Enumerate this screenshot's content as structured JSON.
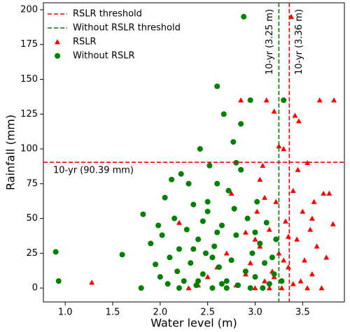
{
  "chart_data": {
    "type": "scatter",
    "xlabel": "Water level (m)",
    "ylabel": "Rainfall (mm)",
    "xlim": [
      0.77,
      3.94
    ],
    "ylim": [
      -10,
      205
    ],
    "xticks": [
      {
        "value": 1.0,
        "label": "1.0"
      },
      {
        "value": 1.5,
        "label": "1.5"
      },
      {
        "value": 2.0,
        "label": "2.0"
      },
      {
        "value": 2.5,
        "label": "2.5"
      },
      {
        "value": 3.0,
        "label": "3.0"
      },
      {
        "value": 3.5,
        "label": "3.5"
      }
    ],
    "yticks": [
      0,
      25,
      50,
      75,
      100,
      125,
      150,
      175,
      200
    ],
    "legend": "upper left",
    "thresholds": [
      {
        "name": "RSLR threshold",
        "color": "#ff0000",
        "axis": "x",
        "value": 3.36,
        "label": "10-yr (3.36 m)"
      },
      {
        "name": "Without RSLR threshold",
        "color": "#008000",
        "axis": "x",
        "value": 3.25,
        "label": "10-yr (3.25 m)"
      },
      {
        "axis": "y",
        "color": "#ff0000",
        "value": 90.39,
        "label": "10-yr (90.39 mm)"
      }
    ],
    "series": [
      {
        "name": "RSLR",
        "color": "#ff0000",
        "marker": "triangle",
        "x": [
          1.28,
          2.4,
          2.5,
          2.6,
          2.7,
          2.75,
          2.8,
          2.85,
          2.9,
          2.95,
          3.0,
          3.02,
          3.05,
          3.08,
          3.1,
          3.12,
          3.15,
          3.18,
          3.2,
          3.22,
          3.25,
          3.28,
          3.3,
          3.32,
          3.35,
          3.38,
          3.4,
          3.42,
          3.44,
          3.46,
          3.48,
          3.5,
          3.52,
          3.55,
          3.58,
          3.6,
          3.62,
          3.65,
          3.68,
          3.7,
          3.72,
          3.75,
          3.78,
          3.82,
          3.83,
          3.4,
          3.3,
          3.2,
          3.1,
          3.0,
          2.9,
          3.45,
          3.55,
          3.6,
          2.2,
          2.3,
          3.25,
          3.35,
          3.15,
          3.05
        ],
        "y": [
          4,
          2,
          8,
          15,
          25,
          68,
          2,
          135,
          40,
          18,
          0,
          55,
          30,
          88,
          5,
          135,
          42,
          12,
          127,
          62,
          25,
          0,
          100,
          48,
          15,
          195,
          70,
          124,
          35,
          120,
          5,
          55,
          20,
          90,
          42,
          10,
          62,
          30,
          135,
          0,
          68,
          22,
          68,
          46,
          135,
          3,
          20,
          8,
          65,
          35,
          10,
          85,
          0,
          50,
          47,
          0,
          102,
          37,
          0,
          78
        ]
      },
      {
        "name": "Without RSLR",
        "color": "#008000",
        "marker": "circle",
        "x": [
          0.9,
          0.93,
          1.6,
          1.8,
          1.82,
          1.9,
          1.95,
          1.98,
          2.0,
          2.02,
          2.05,
          2.08,
          2.1,
          2.12,
          2.15,
          2.18,
          2.2,
          2.22,
          2.25,
          2.28,
          2.3,
          2.32,
          2.35,
          2.38,
          2.4,
          2.42,
          2.45,
          2.48,
          2.5,
          2.52,
          2.55,
          2.57,
          2.6,
          2.62,
          2.65,
          2.67,
          2.7,
          2.72,
          2.75,
          2.77,
          2.8,
          2.82,
          2.85,
          2.88,
          2.9,
          2.92,
          2.95,
          2.97,
          3.0,
          3.02,
          3.05,
          3.08,
          3.1,
          3.12,
          3.15,
          3.18,
          3.2,
          3.22,
          3.3,
          3.28,
          2.5,
          2.6,
          2.7,
          2.78,
          2.85,
          2.35,
          2.45,
          2.55,
          2.65,
          2.8,
          2.95,
          2.2,
          2.4,
          3.0,
          2.6
        ],
        "y": [
          26,
          5,
          24,
          0,
          53,
          32,
          17,
          45,
          8,
          38,
          65,
          3,
          22,
          78,
          50,
          12,
          28,
          82,
          5,
          42,
          75,
          18,
          60,
          2,
          35,
          100,
          10,
          25,
          55,
          88,
          0,
          30,
          145,
          15,
          45,
          125,
          5,
          70,
          20,
          105,
          38,
          2,
          85,
          195,
          12,
          50,
          135,
          25,
          8,
          62,
          32,
          0,
          18,
          47,
          3,
          22,
          10,
          35,
          135,
          5,
          62,
          40,
          0,
          57,
          118,
          28,
          48,
          22,
          3,
          90,
          0,
          0,
          5,
          40,
          75
        ]
      }
    ]
  }
}
